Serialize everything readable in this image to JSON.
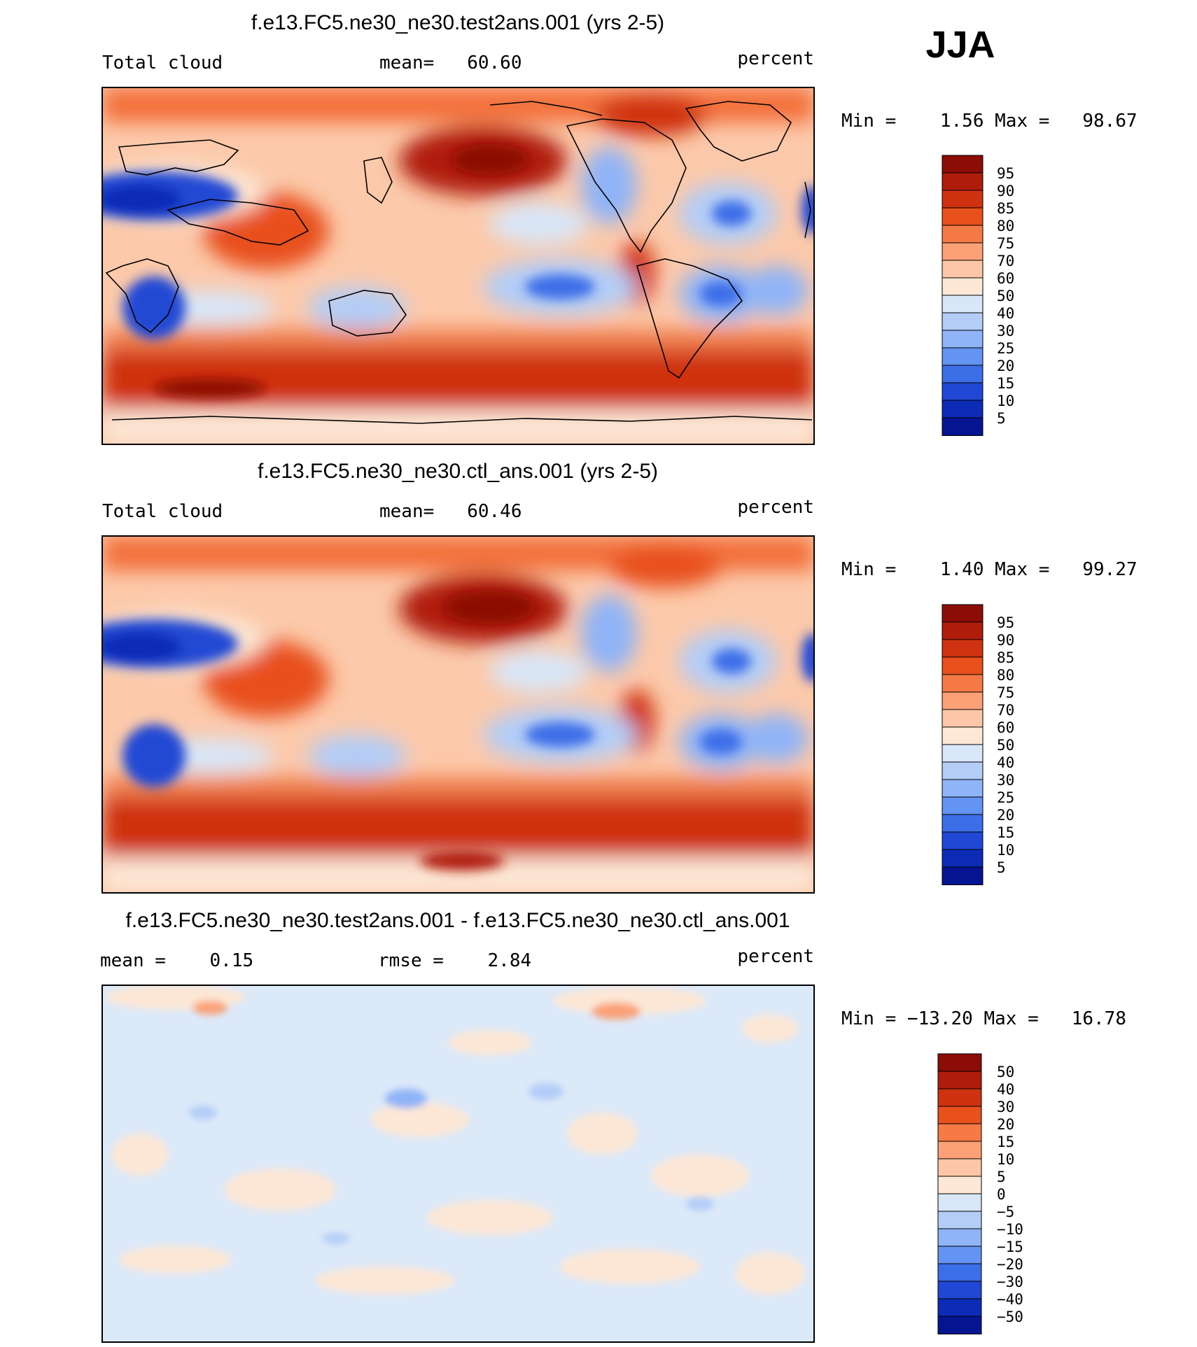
{
  "season": "JJA",
  "chart_data": [
    {
      "type": "heatmap",
      "title": "f.e13.FC5.ne30_ne30.test2ans.001 (yrs 2-5)",
      "variable": "Total cloud",
      "stat_text": "mean=   60.60",
      "units": "percent",
      "minmax_text": "Min =    1.56 Max =   98.67",
      "mean": 60.6,
      "min": 1.56,
      "max": 98.67,
      "colorbar_labels": [
        "95",
        "90",
        "85",
        "80",
        "75",
        "70",
        "60",
        "50",
        "40",
        "30",
        "25",
        "20",
        "15",
        "10",
        "5"
      ],
      "colorbar_colors": [
        "#8c0c06",
        "#b01c0c",
        "#cf3210",
        "#e8501c",
        "#f57a45",
        "#fba077",
        "#fdc7a7",
        "#fde7d6",
        "#d8e6f8",
        "#b3cdf7",
        "#8fb4f7",
        "#6393f3",
        "#3c6ee8",
        "#2048d4",
        "#0c2cb8",
        "#051490"
      ]
    },
    {
      "type": "heatmap",
      "title": "f.e13.FC5.ne30_ne30.ctl_ans.001 (yrs 2-5)",
      "variable": "Total cloud",
      "stat_text": "mean=   60.46",
      "units": "percent",
      "minmax_text": "Min =    1.40 Max =   99.27",
      "mean": 60.46,
      "min": 1.4,
      "max": 99.27,
      "colorbar_labels": [
        "95",
        "90",
        "85",
        "80",
        "75",
        "70",
        "60",
        "50",
        "40",
        "30",
        "25",
        "20",
        "15",
        "10",
        "5"
      ],
      "colorbar_colors": [
        "#8c0c06",
        "#b01c0c",
        "#cf3210",
        "#e8501c",
        "#f57a45",
        "#fba077",
        "#fdc7a7",
        "#fde7d6",
        "#d8e6f8",
        "#b3cdf7",
        "#8fb4f7",
        "#6393f3",
        "#3c6ee8",
        "#2048d4",
        "#0c2cb8",
        "#051490"
      ]
    },
    {
      "type": "heatmap",
      "title": "f.e13.FC5.ne30_ne30.test2ans.001 - f.e13.FC5.ne30_ne30.ctl_ans.001",
      "variable": "mean =    0.15",
      "stat_text": "rmse =    2.84",
      "units": "percent",
      "minmax_text": "Min = −13.20 Max =   16.78",
      "mean": 0.15,
      "rmse": 2.84,
      "min": -13.2,
      "max": 16.78,
      "colorbar_labels": [
        "50",
        "40",
        "30",
        "20",
        "15",
        "10",
        "5",
        "0",
        "−5",
        "−10",
        "−15",
        "−20",
        "−30",
        "−40",
        "−50"
      ],
      "colorbar_colors": [
        "#8c0c06",
        "#b01c0c",
        "#cf3210",
        "#e8501c",
        "#f57a45",
        "#fba077",
        "#fdc7a7",
        "#fde7d6",
        "#d8e6f8",
        "#b3cdf7",
        "#8fb4f7",
        "#6393f3",
        "#3c6ee8",
        "#2048d4",
        "#0c2cb8",
        "#051490"
      ]
    }
  ]
}
